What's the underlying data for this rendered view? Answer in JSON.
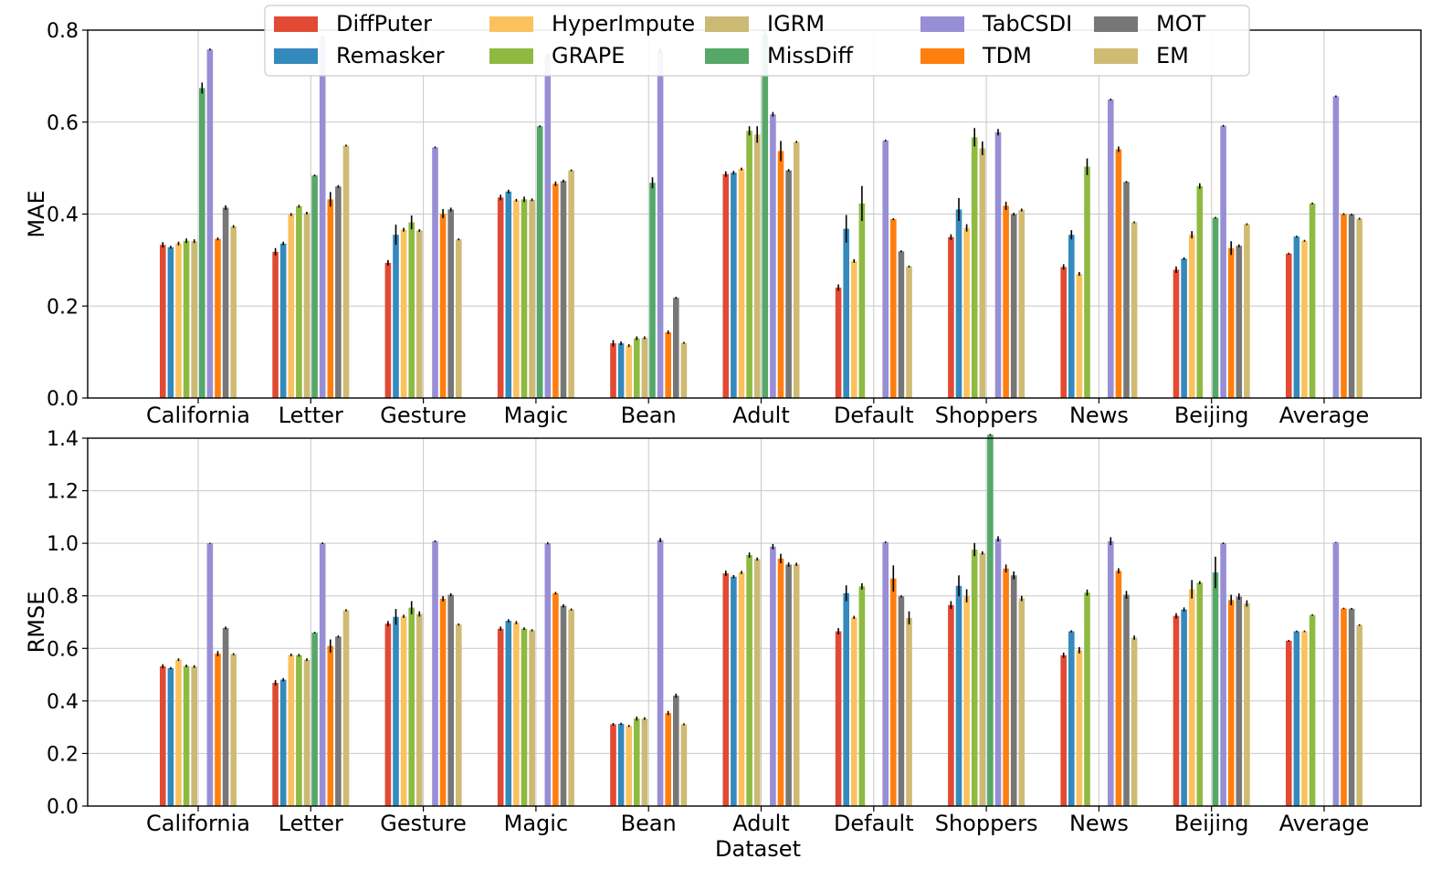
{
  "colors": {
    "DiffPuter": "#e24a33",
    "Remasker": "#348abd",
    "HyperImpute": "#fbc15e",
    "GRAPE": "#8eba42",
    "IGRM": "#ccb974",
    "MissDiff": "#55a868",
    "TabCSDI": "#988ed5",
    "TDM": "#ff7f0e",
    "MOT": "#777777",
    "EM": "#d0bb73"
  },
  "legend": {
    "entries": [
      "DiffPuter",
      "Remasker",
      "HyperImpute",
      "GRAPE",
      "IGRM",
      "MissDiff",
      "TabCSDI",
      "TDM",
      "MOT",
      "EM"
    ]
  },
  "chart_data": [
    {
      "type": "bar",
      "title": "",
      "xlabel": "",
      "ylabel": "MAE",
      "ylim": [
        0,
        0.8
      ],
      "yticks": [
        "0.0",
        "0.2",
        "0.4",
        "0.6",
        "0.8"
      ],
      "grid": true,
      "legend_position": "top-center",
      "categories": [
        "California",
        "Letter",
        "Gesture",
        "Magic",
        "Bean",
        "Adult",
        "Default",
        "Shoppers",
        "News",
        "Beijing",
        "Average"
      ],
      "series": [
        {
          "name": "DiffPuter",
          "values": [
            0.333,
            0.318,
            0.294,
            0.436,
            0.119,
            0.487,
            0.24,
            0.35,
            0.285,
            0.279,
            0.314
          ],
          "errors": [
            0.006,
            0.008,
            0.006,
            0.006,
            0.007,
            0.006,
            0.007,
            0.006,
            0.006,
            0.007,
            0.002
          ]
        },
        {
          "name": "Remasker",
          "values": [
            0.328,
            0.336,
            0.355,
            0.449,
            0.119,
            0.49,
            0.368,
            0.41,
            0.355,
            0.303,
            0.351
          ],
          "errors": [
            0.003,
            0.004,
            0.022,
            0.004,
            0.004,
            0.004,
            0.03,
            0.025,
            0.01,
            0.003,
            0.002
          ]
        },
        {
          "name": "HyperImpute",
          "values": [
            0.336,
            0.399,
            0.366,
            0.43,
            0.114,
            0.498,
            0.298,
            0.37,
            0.27,
            0.355,
            0.342
          ],
          "errors": [
            0.004,
            0.003,
            0.004,
            0.003,
            0.003,
            0.003,
            0.004,
            0.008,
            0.004,
            0.008,
            0.002
          ]
        },
        {
          "name": "GRAPE",
          "values": [
            0.342,
            0.417,
            0.382,
            0.432,
            0.13,
            0.581,
            0.423,
            0.567,
            0.503,
            0.461,
            0.423
          ],
          "errors": [
            0.005,
            0.003,
            0.015,
            0.006,
            0.004,
            0.01,
            0.038,
            0.02,
            0.018,
            0.006,
            0.002
          ]
        },
        {
          "name": "IGRM",
          "values": [
            0.341,
            0.402,
            0.364,
            0.431,
            0.131,
            0.573,
            0.0,
            0.543,
            0.0,
            0.0,
            0.0
          ],
          "errors": [
            0.004,
            0.003,
            0.003,
            0.003,
            0.003,
            0.018,
            0,
            0.015,
            0,
            0,
            0
          ]
        },
        {
          "name": "MissDiff",
          "values": [
            0.674,
            0.484,
            0.0,
            0.591,
            0.468,
            0.79,
            0.0,
            0.0,
            0.0,
            0.392,
            0.0
          ],
          "errors": [
            0.012,
            0.002,
            0,
            0.002,
            0.012,
            0.01,
            0,
            0,
            0,
            0.002,
            0
          ]
        },
        {
          "name": "TabCSDI",
          "values": [
            0.758,
            0.785,
            0.545,
            0.745,
            0.755,
            0.617,
            0.56,
            0.578,
            0.649,
            0.592,
            0.656
          ],
          "errors": [
            0.002,
            0.003,
            0.002,
            0.004,
            0.006,
            0.005,
            0.002,
            0.007,
            0.002,
            0.002,
            0.002
          ]
        },
        {
          "name": "TDM",
          "values": [
            0.346,
            0.432,
            0.401,
            0.466,
            0.143,
            0.537,
            0.389,
            0.418,
            0.541,
            0.326,
            0.4
          ],
          "errors": [
            0.003,
            0.016,
            0.01,
            0.005,
            0.004,
            0.022,
            0.002,
            0.009,
            0.006,
            0.015,
            0.002
          ]
        },
        {
          "name": "MOT",
          "values": [
            0.414,
            0.46,
            0.41,
            0.472,
            0.218,
            0.495,
            0.319,
            0.4,
            0.47,
            0.331,
            0.399
          ],
          "errors": [
            0.005,
            0.003,
            0.004,
            0.003,
            0.002,
            0.003,
            0.002,
            0.003,
            0.002,
            0.003,
            0.002
          ]
        },
        {
          "name": "EM",
          "values": [
            0.373,
            0.549,
            0.345,
            0.495,
            0.12,
            0.557,
            0.286,
            0.409,
            0.382,
            0.378,
            0.39
          ],
          "errors": [
            0.003,
            0.002,
            0.002,
            0.002,
            0.002,
            0.002,
            0.002,
            0.003,
            0.002,
            0.002,
            0.002
          ]
        }
      ]
    },
    {
      "type": "bar",
      "title": "",
      "xlabel": "Dataset",
      "ylabel": "RMSE",
      "ylim": [
        0,
        1.4
      ],
      "yticks": [
        "0.0",
        "0.2",
        "0.4",
        "0.6",
        "0.8",
        "1.0",
        "1.2",
        "1.4"
      ],
      "grid": true,
      "categories": [
        "California",
        "Letter",
        "Gesture",
        "Magic",
        "Bean",
        "Adult",
        "Default",
        "Shoppers",
        "News",
        "Beijing",
        "Average"
      ],
      "series": [
        {
          "name": "DiffPuter",
          "values": [
            0.532,
            0.469,
            0.694,
            0.675,
            0.311,
            0.886,
            0.665,
            0.765,
            0.574,
            0.724,
            0.629
          ],
          "errors": [
            0.008,
            0.01,
            0.01,
            0.008,
            0.005,
            0.01,
            0.012,
            0.015,
            0.01,
            0.01,
            0.003
          ]
        },
        {
          "name": "Remasker",
          "values": [
            0.525,
            0.481,
            0.72,
            0.705,
            0.313,
            0.873,
            0.81,
            0.838,
            0.665,
            0.748,
            0.665
          ],
          "errors": [
            0.004,
            0.006,
            0.03,
            0.006,
            0.004,
            0.006,
            0.03,
            0.04,
            0.004,
            0.008,
            0.003
          ]
        },
        {
          "name": "HyperImpute",
          "values": [
            0.557,
            0.575,
            0.722,
            0.698,
            0.305,
            0.889,
            0.718,
            0.8,
            0.593,
            0.825,
            0.665
          ],
          "errors": [
            0.005,
            0.005,
            0.006,
            0.006,
            0.004,
            0.006,
            0.006,
            0.025,
            0.012,
            0.035,
            0.003
          ]
        },
        {
          "name": "GRAPE",
          "values": [
            0.533,
            0.574,
            0.755,
            0.675,
            0.333,
            0.955,
            0.836,
            0.976,
            0.812,
            0.85,
            0.727
          ],
          "errors": [
            0.005,
            0.005,
            0.025,
            0.005,
            0.008,
            0.01,
            0.012,
            0.025,
            0.012,
            0.006,
            0.003
          ]
        },
        {
          "name": "IGRM",
          "values": [
            0.531,
            0.557,
            0.731,
            0.669,
            0.333,
            0.94,
            0.0,
            0.963,
            0.0,
            0.0,
            0.0
          ],
          "errors": [
            0.005,
            0.005,
            0.01,
            0.004,
            0.005,
            0.006,
            0,
            0.006,
            0,
            0,
            0
          ]
        },
        {
          "name": "MissDiff",
          "values": [
            0.0,
            0.66,
            0.0,
            0.0,
            0.0,
            0.0,
            0.0,
            1.413,
            0.0,
            0.889,
            0.0
          ],
          "errors": [
            0,
            0.003,
            0,
            0,
            0,
            0,
            0,
            0.003,
            0,
            0.06,
            0
          ]
        },
        {
          "name": "TabCSDI",
          "values": [
            1.0,
            1.0,
            1.008,
            1.0,
            1.012,
            0.987,
            1.004,
            1.017,
            1.008,
            1.0,
            1.003
          ],
          "errors": [
            0.002,
            0.003,
            0.003,
            0.004,
            0.008,
            0.01,
            0.003,
            0.01,
            0.015,
            0.003,
            0.002
          ]
        },
        {
          "name": "TDM",
          "values": [
            0.58,
            0.609,
            0.789,
            0.81,
            0.354,
            0.942,
            0.866,
            0.904,
            0.895,
            0.784,
            0.752
          ],
          "errors": [
            0.01,
            0.025,
            0.01,
            0.005,
            0.008,
            0.018,
            0.05,
            0.015,
            0.01,
            0.02,
            0.003
          ]
        },
        {
          "name": "MOT",
          "values": [
            0.678,
            0.645,
            0.804,
            0.762,
            0.42,
            0.919,
            0.798,
            0.878,
            0.804,
            0.797,
            0.751
          ],
          "errors": [
            0.005,
            0.004,
            0.006,
            0.006,
            0.008,
            0.008,
            0.004,
            0.015,
            0.015,
            0.012,
            0.003
          ]
        },
        {
          "name": "EM",
          "values": [
            0.578,
            0.745,
            0.691,
            0.748,
            0.311,
            0.92,
            0.716,
            0.79,
            0.641,
            0.771,
            0.689
          ],
          "errors": [
            0.004,
            0.004,
            0.004,
            0.004,
            0.004,
            0.006,
            0.025,
            0.01,
            0.008,
            0.012,
            0.003
          ]
        }
      ]
    }
  ]
}
